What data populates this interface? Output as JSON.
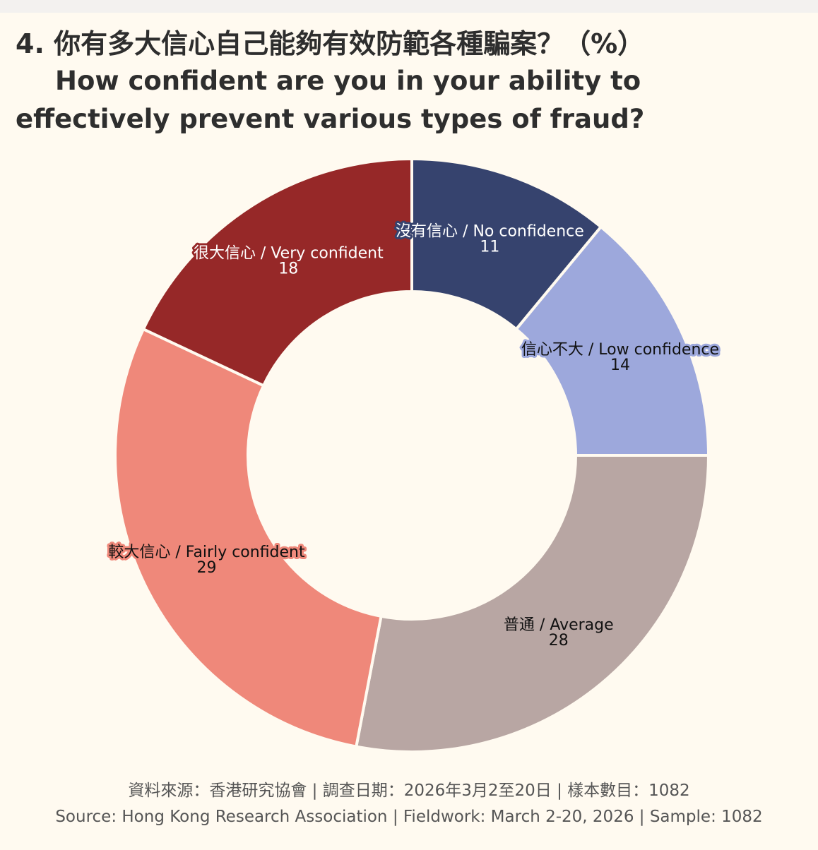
{
  "header": {
    "title_zh": "4. 你有多大信心自己能夠有效防範各種騙案？（%）",
    "title_en": "How confident are you in your ability to effectively prevent various types of fraud?"
  },
  "chart_data": {
    "type": "pie",
    "style": "donut",
    "unit": "%",
    "slices": [
      {
        "label": "沒有信心 / No confidence",
        "value": 11,
        "color": "#36436e",
        "text_color": "#ffffff"
      },
      {
        "label": "信心不大 / Low confidence",
        "value": 14,
        "color": "#9da8dc",
        "text_color": "#111111"
      },
      {
        "label": "普通 / Average",
        "value": 28,
        "color": "#b8a6a3",
        "text_color": "#111111"
      },
      {
        "label": "較大信心 / Fairly confident",
        "value": 29,
        "color": "#ef887a",
        "text_color": "#111111"
      },
      {
        "label": "很大信心 / Very confident",
        "value": 18,
        "color": "#962828",
        "text_color": "#ffffff"
      }
    ]
  },
  "footer": {
    "source_zh": "資料來源：香港研究協會 | 調查日期：2026年3月2至20日 | 樣本數目：1082",
    "source_en": "Source: Hong Kong Research Association | Fieldwork: March 2-20, 2026 | Sample: 1082"
  }
}
